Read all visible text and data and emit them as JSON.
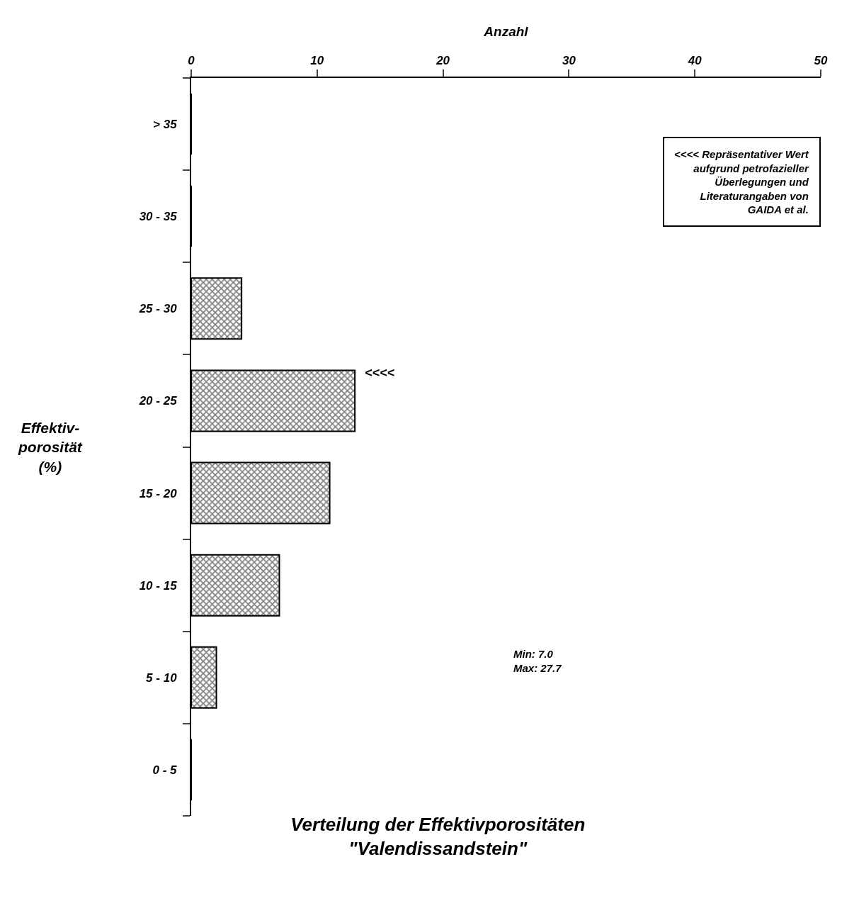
{
  "chart_data": {
    "type": "bar",
    "orientation": "horizontal",
    "title": "Verteilung der Effektivporositäten\n\"Valendissandstein\"",
    "xlabel": "Anzahl",
    "ylabel": "Effektiv-\nporosität\n(%)",
    "categories": [
      "> 35",
      "30 - 35",
      "25 - 30",
      "20 - 25",
      "15 - 20",
      "10 - 15",
      "5 - 10",
      "0 - 5"
    ],
    "values": [
      0,
      0,
      4,
      13,
      11,
      7,
      2,
      0
    ],
    "color": "#000000",
    "xlim": [
      0,
      50
    ],
    "xticks": [
      0,
      10,
      20,
      30,
      40,
      50
    ],
    "annotations": [
      "<<<< Repräsentativer Wert\naufgrund petrofazieller\nÜberlegungen und\nLiteraturangaben von\nGAIDA et al.",
      "<<<<",
      "Min: 7.0\nMax: 27.7"
    ]
  }
}
